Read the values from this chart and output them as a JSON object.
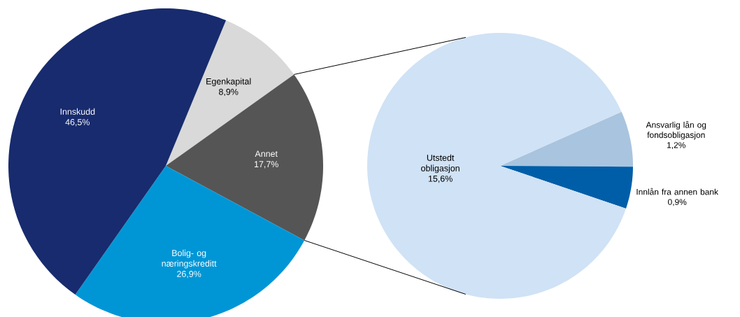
{
  "chart_data": [
    {
      "type": "pie",
      "categories": [
        "Egenkapital",
        "Annet",
        "Bolig- og næringskreditt",
        "Innskudd"
      ],
      "values": [
        8.9,
        17.7,
        26.9,
        46.5
      ],
      "value_labels": [
        "8,9%",
        "17,7%",
        "26,9%",
        "46,5%"
      ],
      "colors": [
        "#d9d9d9",
        "#555555",
        "#0096d6",
        "#172b6e"
      ]
    },
    {
      "type": "pie",
      "categories": [
        "Ansvarlig lån og fondsobligasjon",
        "Innlån fra annen bank",
        "Utstedt obligasjon"
      ],
      "values": [
        1.2,
        0.9,
        15.6
      ],
      "value_labels": [
        "1,2%",
        "0,9%",
        "15,6%"
      ],
      "colors": [
        "#a9c4de",
        "#005ea8",
        "#d0e2f5"
      ]
    }
  ]
}
